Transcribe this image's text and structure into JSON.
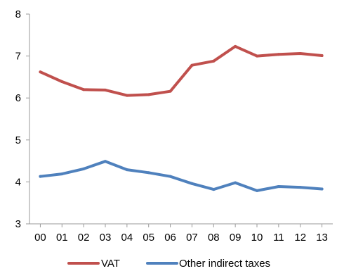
{
  "chart_data": {
    "type": "line",
    "title": "",
    "xlabel": "",
    "ylabel": "",
    "categories": [
      "00",
      "01",
      "02",
      "03",
      "04",
      "05",
      "06",
      "07",
      "08",
      "09",
      "10",
      "11",
      "12",
      "13"
    ],
    "ylim": [
      3,
      8
    ],
    "yticks": [
      "3",
      "4",
      "5",
      "6",
      "7",
      "8"
    ],
    "grid": false,
    "legend_position": "bottom",
    "series": [
      {
        "name": "VAT",
        "color": "#c0504d",
        "values": [
          6.62,
          6.39,
          6.2,
          6.19,
          6.06,
          6.08,
          6.16,
          6.78,
          6.88,
          7.23,
          7.0,
          7.04,
          7.06,
          7.01
        ]
      },
      {
        "name": "Other indirect taxes",
        "color": "#4f81bd",
        "values": [
          4.13,
          4.19,
          4.31,
          4.49,
          4.29,
          4.22,
          4.13,
          3.96,
          3.82,
          3.98,
          3.79,
          3.89,
          3.87,
          3.83
        ]
      }
    ]
  }
}
